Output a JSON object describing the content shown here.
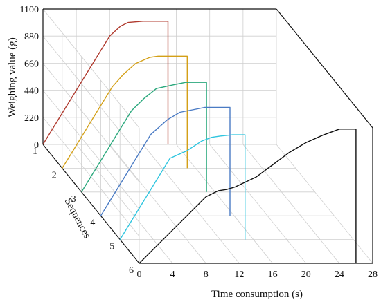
{
  "chart_data": {
    "type": "line",
    "projection": "3d-waterfall",
    "zlabel": "Weighing value  (g)",
    "zticks": [
      0,
      220,
      440,
      660,
      880,
      1100
    ],
    "zlim": [
      0,
      1100
    ],
    "xlabel": "Time consumption (s)",
    "xticks": [
      0,
      4,
      8,
      12,
      16,
      20,
      24,
      28
    ],
    "xlim": [
      0,
      28
    ],
    "ylabel": "Sequences",
    "yticks": [
      "1",
      "2",
      "3",
      "4",
      "5",
      "6"
    ],
    "grid": true,
    "series": [
      {
        "color": "#b03a2e",
        "points": [
          [
            0,
            0
          ],
          [
            2,
            220
          ],
          [
            4,
            440
          ],
          [
            6,
            660
          ],
          [
            8,
            880
          ],
          [
            9.3,
            960
          ],
          [
            10.2,
            990
          ],
          [
            12,
            1000
          ],
          [
            15,
            1000
          ],
          [
            15,
            0
          ]
        ]
      },
      {
        "color": "#d4a017",
        "points": [
          [
            0,
            0
          ],
          [
            2,
            220
          ],
          [
            4,
            440
          ],
          [
            6,
            660
          ],
          [
            7.3,
            760
          ],
          [
            8.8,
            850
          ],
          [
            10.5,
            900
          ],
          [
            11.5,
            910
          ],
          [
            15,
            910
          ],
          [
            15,
            0
          ]
        ]
      },
      {
        "color": "#2aa87c",
        "points": [
          [
            0,
            0
          ],
          [
            2,
            220
          ],
          [
            4,
            440
          ],
          [
            6,
            660
          ],
          [
            7.5,
            760
          ],
          [
            9,
            840
          ],
          [
            11,
            870
          ],
          [
            12.5,
            890
          ],
          [
            15,
            890
          ],
          [
            15,
            0
          ]
        ]
      },
      {
        "color": "#4a7bc4",
        "points": [
          [
            0,
            0
          ],
          [
            2,
            220
          ],
          [
            4,
            440
          ],
          [
            6,
            660
          ],
          [
            8,
            780
          ],
          [
            9.5,
            840
          ],
          [
            11,
            860
          ],
          [
            12.5,
            880
          ],
          [
            15.5,
            880
          ],
          [
            15.5,
            0
          ]
        ]
      },
      {
        "color": "#2fc5df",
        "points": [
          [
            0,
            0
          ],
          [
            2,
            220
          ],
          [
            4,
            440
          ],
          [
            6,
            660
          ],
          [
            8,
            720
          ],
          [
            9.8,
            800
          ],
          [
            11,
            830
          ],
          [
            12,
            840
          ],
          [
            13.5,
            850
          ],
          [
            15,
            850
          ],
          [
            15,
            0
          ]
        ]
      },
      {
        "color": "#111111",
        "points": [
          [
            0,
            0
          ],
          [
            8,
            540
          ],
          [
            9.5,
            590
          ],
          [
            10.5,
            600
          ],
          [
            11.5,
            620
          ],
          [
            14,
            700
          ],
          [
            16,
            800
          ],
          [
            18,
            900
          ],
          [
            20,
            980
          ],
          [
            22,
            1040
          ],
          [
            24,
            1090
          ],
          [
            26,
            1090
          ],
          [
            26,
            0
          ]
        ]
      }
    ]
  }
}
